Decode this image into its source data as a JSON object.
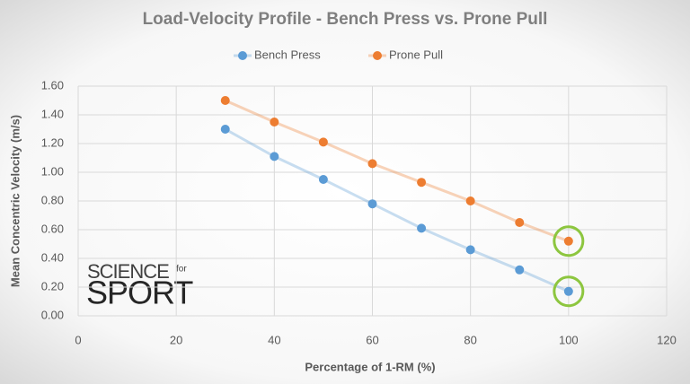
{
  "chart_data": {
    "type": "scatter",
    "title": "Load-Velocity Profile - Bench Press vs. Prone Pull",
    "x_label": "Percentage of 1-RM (%)",
    "y_label": "Mean Concentric Velocity (m/s)",
    "x": [
      30,
      40,
      50,
      60,
      70,
      80,
      90,
      100
    ],
    "series": [
      {
        "name": "Bench Press",
        "color": "#5b9bd5",
        "values": [
          1.3,
          1.11,
          0.95,
          0.78,
          0.61,
          0.46,
          0.32,
          0.17
        ]
      },
      {
        "name": "Prone Pull",
        "color": "#ed7d31",
        "values": [
          1.5,
          1.35,
          1.21,
          1.06,
          0.93,
          0.8,
          0.65,
          0.52
        ]
      }
    ],
    "xlim": [
      0,
      120
    ],
    "xticks": [
      0,
      20,
      40,
      60,
      80,
      100,
      120
    ],
    "ylim": [
      0,
      1.6
    ],
    "yticks": [
      {
        "value": 0,
        "label": "0.00"
      },
      {
        "value": 0.2,
        "label": "0.20"
      },
      {
        "value": 0.4,
        "label": "0.40"
      },
      {
        "value": 0.6,
        "label": "0.60"
      },
      {
        "value": 0.8,
        "label": "0.80"
      },
      {
        "value": 1.0,
        "label": "1.00"
      },
      {
        "value": 1.2,
        "label": "1.20"
      },
      {
        "value": 1.4,
        "label": "1.40"
      },
      {
        "value": 1.6,
        "label": "1.60"
      }
    ],
    "grid": true,
    "legend": "top",
    "annotations": [
      "SCIENCE",
      "for",
      "SPORT"
    ]
  }
}
